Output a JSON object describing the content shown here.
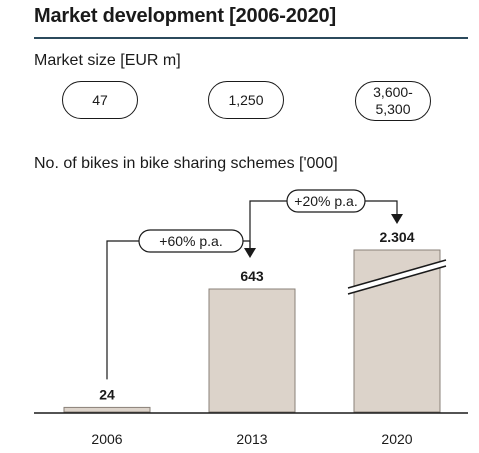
{
  "header": {
    "title": "Market development [2006-2020]"
  },
  "market_size": {
    "label": "Market size [EUR m]",
    "values": [
      {
        "line1": "47",
        "line2": ""
      },
      {
        "line1": "1,250",
        "line2": ""
      },
      {
        "line1": "3,600-",
        "line2": "5,300"
      }
    ]
  },
  "bikes_section": {
    "label": "No. of bikes in bike sharing schemes ['000]"
  },
  "colors": {
    "bar_fill": "#dcd3ca",
    "bar_stroke": "#8a8078",
    "axis": "#1a1a1a",
    "title_rule": "#2b4a5c",
    "connector": "#1a1a1a"
  },
  "chart_data": {
    "type": "bar",
    "categories": [
      "2006",
      "2013",
      "2020"
    ],
    "values": [
      24,
      643,
      2304
    ],
    "data_labels": [
      "24",
      "643",
      "2.304"
    ],
    "broken_axis_bar_index": 2,
    "growth_annotations": [
      {
        "from": "2006",
        "to": "2013",
        "label": "+60% p.a."
      },
      {
        "from": "2013",
        "to": "2020",
        "label": "+20% p.a."
      }
    ],
    "title": "",
    "xlabel": "",
    "ylabel": "",
    "grid": false
  }
}
